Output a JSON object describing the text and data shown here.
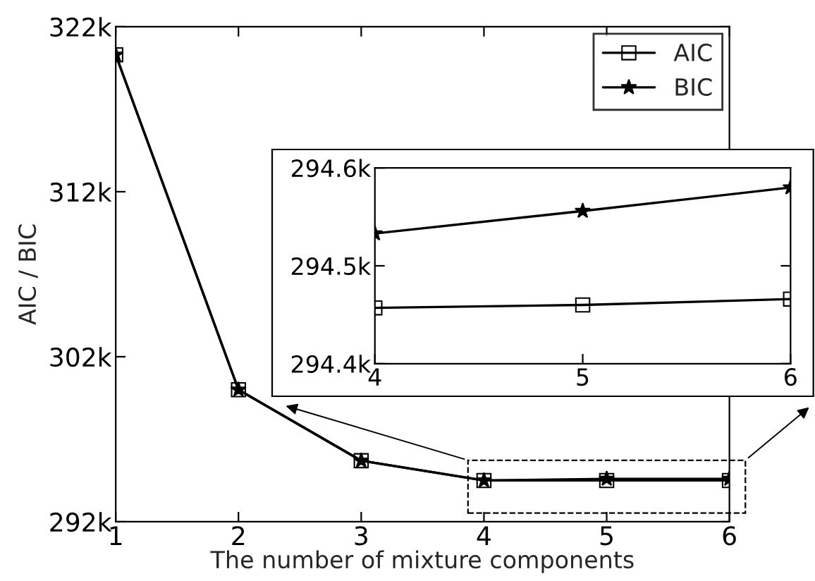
{
  "chart_data": [
    {
      "type": "line",
      "xlabel": "The number of mixture components",
      "ylabel": "AIC / BIC",
      "x": [
        1,
        2,
        3,
        4,
        5,
        6
      ],
      "series": [
        {
          "name": "AIC",
          "color": "#000000",
          "marker": "square",
          "values": [
            320300,
            300000,
            295700,
            294500,
            294500,
            294500
          ]
        },
        {
          "name": "BIC",
          "color": "#000000",
          "marker": "star",
          "values": [
            320300,
            300000,
            295700,
            294500,
            294600,
            294600
          ]
        }
      ],
      "xlim": [
        1,
        6
      ],
      "xticks": [
        1,
        2,
        3,
        4,
        5,
        6
      ],
      "ylim": [
        292000,
        322000
      ],
      "yticks": [
        {
          "value": 292000,
          "label": "292k"
        },
        {
          "value": 302000,
          "label": "302k"
        },
        {
          "value": 312000,
          "label": "312k"
        },
        {
          "value": 322000,
          "label": "322k"
        }
      ],
      "grid": false,
      "legend": "top right",
      "line_style": "solid"
    },
    {
      "type": "line",
      "x": [
        4,
        5,
        6
      ],
      "series": [
        {
          "color": "#000000",
          "marker": "square",
          "values": [
            294457,
            294460,
            294466
          ]
        },
        {
          "color": "#000000",
          "marker": "star",
          "values": [
            294533,
            294556,
            294580
          ]
        }
      ],
      "xlim": [
        4,
        6
      ],
      "xticks": [
        4,
        5,
        6
      ],
      "ylim": [
        294400,
        294600
      ],
      "yticks": [
        {
          "value": 294400,
          "label": "294.4k"
        },
        {
          "value": 294500,
          "label": "294.5k"
        },
        {
          "value": 294600,
          "label": "294.6k"
        }
      ],
      "grid": false,
      "line_style": "solid"
    }
  ]
}
